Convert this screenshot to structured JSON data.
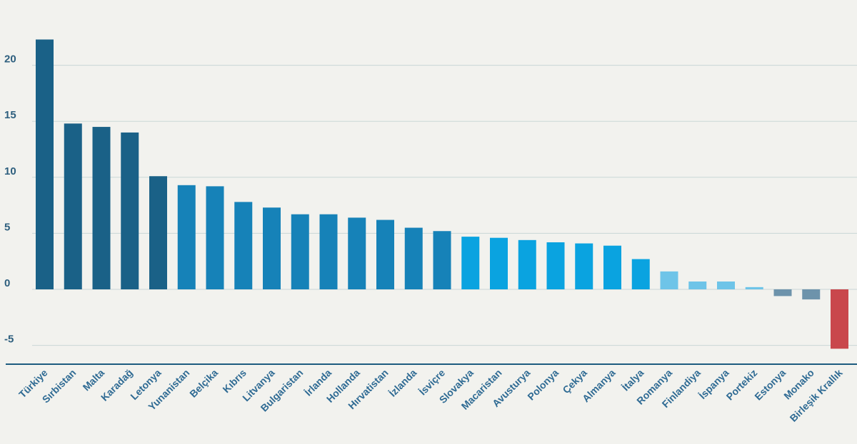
{
  "chart_data": {
    "type": "bar",
    "title": "",
    "xlabel": "",
    "ylabel": "",
    "ylim": [
      -6.5,
      25
    ],
    "yticks": [
      -5,
      0,
      5,
      10,
      15,
      20
    ],
    "grid": true,
    "categories": [
      "Türkiye",
      "Sırbistan",
      "Malta",
      "Karadağ",
      "Letonya",
      "Yunanistan",
      "Belçika",
      "Kıbrıs",
      "Litvanya",
      "Bulgaristan",
      "İrlanda",
      "Hollanda",
      "Hırvatistan",
      "İzlanda",
      "İsviçre",
      "Slovakya",
      "Macaristan",
      "Avusturya",
      "Polonya",
      "Çekya",
      "Almanya",
      "İtalya",
      "Romanya",
      "Finlandiya",
      "İspanya",
      "Portekiz",
      "Estonya",
      "Monako",
      "Birleşik Krallık"
    ],
    "values": [
      22.3,
      14.8,
      14.5,
      14.0,
      10.1,
      9.3,
      9.2,
      7.8,
      7.3,
      6.7,
      6.7,
      6.4,
      6.2,
      5.5,
      5.2,
      4.7,
      4.6,
      4.4,
      4.2,
      4.1,
      3.9,
      2.7,
      1.6,
      0.7,
      0.7,
      0.2,
      -0.6,
      -0.9,
      -5.3
    ],
    "colors": [
      "#1a6187",
      "#1a6187",
      "#1a6187",
      "#1a6187",
      "#1a6187",
      "#1682b8",
      "#1682b8",
      "#1682b8",
      "#1682b8",
      "#1682b8",
      "#1682b8",
      "#1682b8",
      "#1682b8",
      "#1682b8",
      "#1682b8",
      "#0aa3e0",
      "#0aa3e0",
      "#0aa3e0",
      "#0aa3e0",
      "#0aa3e0",
      "#0aa3e0",
      "#0aa3e0",
      "#6ec4e8",
      "#6ec4e8",
      "#6ec4e8",
      "#6ec4e8",
      "#6d93ab",
      "#6d93ab",
      "#c9474c"
    ]
  }
}
